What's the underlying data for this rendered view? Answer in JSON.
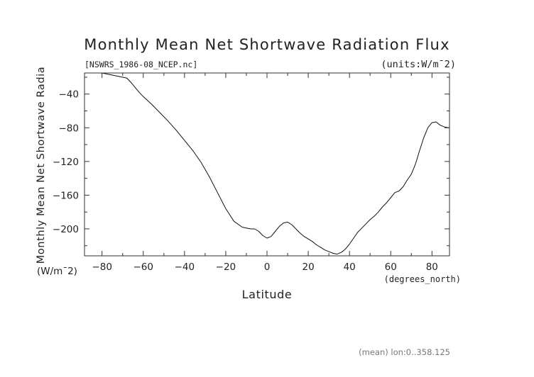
{
  "chart_data": {
    "type": "line",
    "title": "Monthly Mean Net Shortwave Radiation Flux",
    "file_label": "[NSWRS_1986-08_NCEP.nc]",
    "units_label": "(units:W/m¯2)",
    "ylabel": "Monthly Mean Net Shortwave Radia",
    "ylabel_units": "(W/m¯2)",
    "xlabel": "Latitude",
    "xlabel_units": "(degrees_north)",
    "footer": "(mean) lon:0..358.125",
    "xlim": [
      -88.5,
      88.5
    ],
    "ylim": [
      -232,
      -15
    ],
    "xticks": [
      -80,
      -60,
      -40,
      -20,
      0,
      20,
      40,
      60,
      80
    ],
    "yticks": [
      -40,
      -80,
      -120,
      -160,
      -200
    ],
    "grid": false,
    "series": [
      {
        "x": [
          -88,
          -84,
          -80,
          -76,
          -72,
          -68,
          -66,
          -64,
          -62,
          -60,
          -56,
          -52,
          -48,
          -44,
          -40,
          -36,
          -32,
          -28,
          -24,
          -20,
          -16,
          -12,
          -8,
          -6,
          -4,
          -2,
          0,
          2,
          4,
          6,
          8,
          10,
          12,
          14,
          16,
          18,
          20,
          22,
          24,
          26,
          28,
          30,
          32,
          34,
          36,
          38,
          40,
          42,
          44,
          46,
          48,
          50,
          52,
          54,
          56,
          58,
          60,
          62,
          64,
          66,
          68,
          70,
          72,
          74,
          76,
          78,
          80,
          82,
          84,
          86,
          88
        ],
        "y": [
          -13,
          -14,
          -15,
          -17,
          -19,
          -21,
          -26,
          -32,
          -38,
          -43,
          -52,
          -62,
          -72,
          -83,
          -95,
          -107,
          -121,
          -138,
          -157,
          -176,
          -191,
          -198,
          -200,
          -200,
          -203,
          -208,
          -211,
          -209,
          -203,
          -197,
          -193,
          -192,
          -195,
          -200,
          -205,
          -209,
          -212,
          -215,
          -219,
          -222,
          -225,
          -227,
          -229,
          -230,
          -228,
          -224,
          -218,
          -211,
          -204,
          -199,
          -194,
          -189,
          -185,
          -180,
          -174,
          -169,
          -163,
          -157,
          -155,
          -150,
          -142,
          -135,
          -123,
          -107,
          -92,
          -80,
          -74,
          -73,
          -77,
          -79,
          -80
        ]
      }
    ]
  }
}
